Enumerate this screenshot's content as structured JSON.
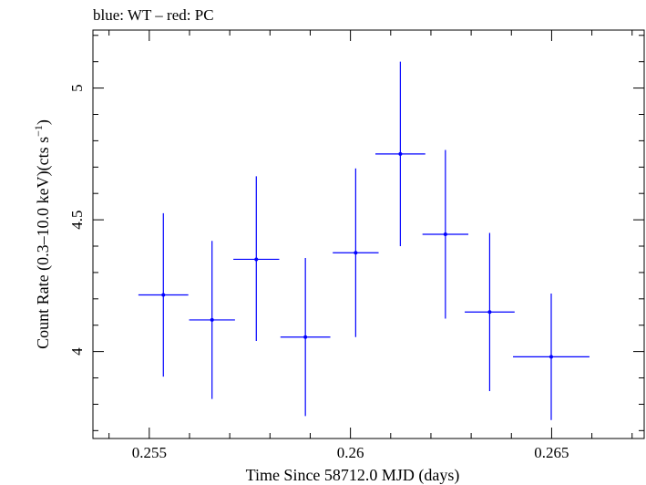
{
  "chart_data": {
    "type": "scatter",
    "title": "blue: WT – red: PC",
    "xlabel": "Time Since 58712.0 MJD (days)",
    "ylabel_prefix": "Count Rate (0.3–10.0 keV)(cts s",
    "ylabel_exp": "−1",
    "ylabel_suffix": ")",
    "xlim": [
      0.2536,
      0.2673
    ],
    "ylim": [
      3.67,
      5.22
    ],
    "xticks": [
      {
        "value": 0.255,
        "label": "0.255"
      },
      {
        "value": 0.26,
        "label": "0.26"
      },
      {
        "value": 0.265,
        "label": "0.265"
      }
    ],
    "yticks": [
      {
        "value": 4,
        "label": "4"
      },
      {
        "value": 4.5,
        "label": "4.5"
      },
      {
        "value": 5,
        "label": "5"
      }
    ],
    "series": [
      {
        "name": "WT",
        "color": "#0000ff",
        "points": [
          {
            "x": 0.25535,
            "y": 4.215,
            "xerr": 0.00062,
            "yerr_lo": 0.31,
            "yerr_hi": 0.31
          },
          {
            "x": 0.25656,
            "y": 4.12,
            "xerr": 0.00057,
            "yerr_lo": 0.3,
            "yerr_hi": 0.3
          },
          {
            "x": 0.25766,
            "y": 4.35,
            "xerr": 0.00057,
            "yerr_lo": 0.31,
            "yerr_hi": 0.315
          },
          {
            "x": 0.25888,
            "y": 4.055,
            "xerr": 0.00062,
            "yerr_lo": 0.3,
            "yerr_hi": 0.3
          },
          {
            "x": 0.26013,
            "y": 4.375,
            "xerr": 0.00057,
            "yerr_lo": 0.32,
            "yerr_hi": 0.32
          },
          {
            "x": 0.26124,
            "y": 4.75,
            "xerr": 0.00062,
            "yerr_lo": 0.35,
            "yerr_hi": 0.35
          },
          {
            "x": 0.26236,
            "y": 4.445,
            "xerr": 0.00057,
            "yerr_lo": 0.32,
            "yerr_hi": 0.32
          },
          {
            "x": 0.26346,
            "y": 4.15,
            "xerr": 0.00062,
            "yerr_lo": 0.3,
            "yerr_hi": 0.3
          },
          {
            "x": 0.26499,
            "y": 3.98,
            "xerr": 0.00095,
            "yerr_lo": 0.24,
            "yerr_hi": 0.24
          }
        ]
      }
    ]
  }
}
